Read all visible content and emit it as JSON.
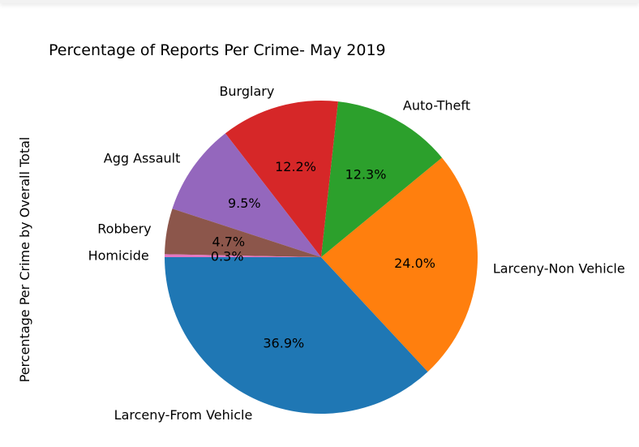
{
  "chart_data": {
    "type": "pie",
    "title": "Percentage of Reports Per Crime- May 2019",
    "ylabel": "Percentage Per Crime by Overall Total",
    "slices": [
      {
        "label": "Larceny-From Vehicle",
        "value": 36.9,
        "pct_label": "36.9%",
        "color": "#1f77b4"
      },
      {
        "label": "Larceny-Non Vehicle",
        "value": 24.0,
        "pct_label": "24.0%",
        "color": "#ff7f0e"
      },
      {
        "label": "Auto-Theft",
        "value": 12.3,
        "pct_label": "12.3%",
        "color": "#2ca02c"
      },
      {
        "label": "Burglary",
        "value": 12.2,
        "pct_label": "12.2%",
        "color": "#d62728"
      },
      {
        "label": "Agg Assault",
        "value": 9.5,
        "pct_label": "9.5%",
        "color": "#9467bd"
      },
      {
        "label": "Robbery",
        "value": 4.7,
        "pct_label": "4.7%",
        "color": "#8c564b"
      },
      {
        "label": "Homicide",
        "value": 0.3,
        "pct_label": "0.3%",
        "color": "#e377c2"
      }
    ]
  }
}
